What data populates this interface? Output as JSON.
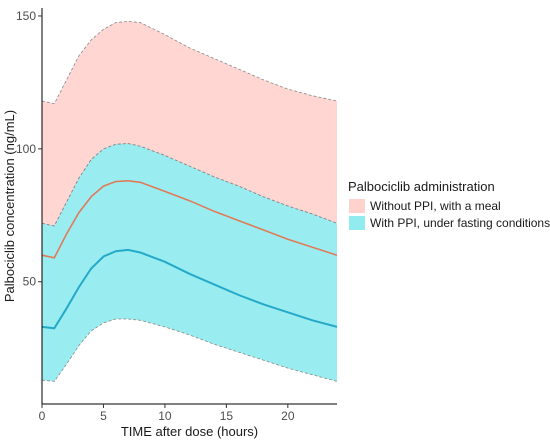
{
  "chart_data": {
    "type": "area",
    "title": "",
    "xlabel": "TIME after dose (hours)",
    "ylabel": "Palbociclib concentration (ng/mL)",
    "xlim": [
      0,
      24
    ],
    "ylim": [
      4,
      153
    ],
    "xticks": [
      0,
      5,
      10,
      15,
      20
    ],
    "yticks": [
      50,
      100,
      150
    ],
    "grid": false,
    "legend": {
      "title": "Palbociclib administration",
      "placement": "right"
    },
    "series": [
      {
        "name": "Without PPI, with a meal",
        "fill_color": "#ffb4ad",
        "line_color": "#e07b5a",
        "x": [
          0,
          1,
          2,
          3,
          4,
          5,
          6,
          7,
          8,
          10,
          12,
          14,
          16,
          18,
          20,
          22,
          24
        ],
        "median": [
          60,
          59,
          68,
          76,
          82,
          86,
          87.7,
          88,
          87.4,
          84,
          80.5,
          76.5,
          73,
          69.5,
          66,
          63,
          60
        ],
        "lower": [
          72,
          71,
          80,
          89,
          96,
          100,
          101.7,
          102,
          101,
          97.5,
          93.5,
          89.5,
          86,
          82,
          78.5,
          75.5,
          72
        ],
        "upper": [
          118,
          117,
          126,
          135,
          141,
          145,
          147.5,
          148,
          147.5,
          143,
          138,
          134,
          130,
          126,
          122.5,
          120,
          118
        ]
      },
      {
        "name": "With PPI, under fasting conditions",
        "fill_color": "#6ee6ea",
        "line_color": "#25a9c9",
        "x": [
          0,
          1,
          2,
          3,
          4,
          5,
          6,
          7,
          8,
          10,
          12,
          14,
          16,
          18,
          20,
          22,
          24
        ],
        "median": [
          33,
          32.5,
          40,
          48,
          55,
          59.5,
          61.5,
          62,
          61,
          57.5,
          53,
          49,
          45,
          41.5,
          38.5,
          35.5,
          33
        ],
        "lower": [
          13,
          12.5,
          19,
          26,
          31.5,
          34.5,
          36,
          36,
          35.5,
          33,
          30,
          26.5,
          23.5,
          20.5,
          17.5,
          15,
          12.5
        ],
        "upper": [
          72,
          71,
          80,
          89,
          96,
          100,
          101.7,
          102,
          101,
          97.5,
          93.5,
          89.5,
          86,
          82,
          78.5,
          75.5,
          72
        ]
      }
    ],
    "overlap_color": "#a9c8c6"
  }
}
